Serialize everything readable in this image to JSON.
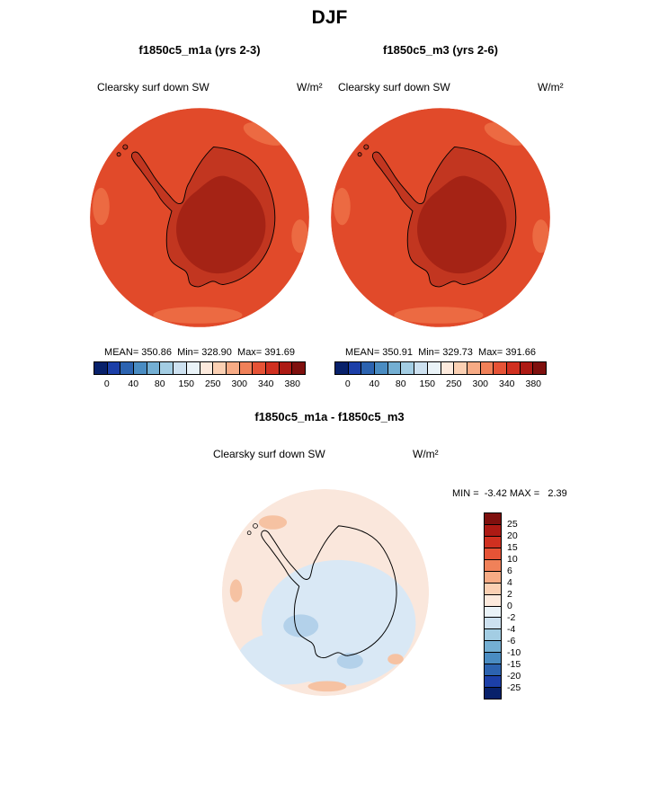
{
  "title": "DJF",
  "panels": [
    {
      "title": "f1850c5_m1a (yrs 2-3)",
      "field": "Clearsky surf down SW",
      "units": "W/m²",
      "stats": "MEAN= 350.86  Min= 328.90  Max= 391.69"
    },
    {
      "title": "f1850c5_m3 (yrs 2-6)",
      "field": "Clearsky surf down SW",
      "units": "W/m²",
      "stats": "MEAN= 350.91  Min= 329.73  Max= 391.66"
    }
  ],
  "scale": {
    "ticks": [
      "0",
      "40",
      "80",
      "150",
      "250",
      "300",
      "340",
      "380"
    ],
    "colors": [
      "#08216b",
      "#1c3fa8",
      "#2c63b0",
      "#4a8cc2",
      "#74afd3",
      "#a3cde3",
      "#cde1f0",
      "#eaf3f8",
      "#fdeadd",
      "#fbd0b3",
      "#f7ab85",
      "#f08159",
      "#e65336",
      "#d03020",
      "#ad1a14",
      "#7f100e"
    ]
  },
  "diff": {
    "title": "f1850c5_m1a - f1850c5_m3",
    "field": "Clearsky surf down SW",
    "units": "W/m²",
    "minmax": "MIN =  -3.42 MAX =   2.39",
    "labels": [
      "25",
      "20",
      "15",
      "10",
      "6",
      "4",
      "2",
      "0",
      "-2",
      "-4",
      "-6",
      "-10",
      "-15",
      "-20",
      "-25"
    ],
    "colors": [
      "#7f100e",
      "#ad1a14",
      "#d03020",
      "#e65336",
      "#f08159",
      "#f7ab85",
      "#fbd0b3",
      "#fdeadd",
      "#eaf3f8",
      "#cde1f0",
      "#a3cde3",
      "#74afd3",
      "#4a8cc2",
      "#2c63b0",
      "#1c3fa8",
      "#08216b"
    ]
  },
  "map_colors": {
    "ocean": "#E14A2A",
    "ocean_light": "#EC6A42",
    "continent": "#C23620",
    "interior": "#A52315",
    "diff_base": "#FAE7DC",
    "diff_blue_light": "#D9E8F5",
    "diff_blue_med": "#B3D1EA",
    "diff_salmon": "#F6C2A2"
  },
  "chart_data": [
    {
      "type": "heatmap",
      "subtype": "south_polar_stereographic_contour_map",
      "season": "DJF",
      "title": "f1850c5_m1a (yrs 2-3)",
      "variable": "Clearsky surf down SW",
      "units": "W/m²",
      "stats": {
        "mean": 350.86,
        "min": 328.9,
        "max": 391.69
      },
      "colorbar_ticks": [
        0,
        40,
        80,
        150,
        250,
        300,
        340,
        380
      ],
      "palette": "blue-to-red, 16 discrete cells",
      "legend_position": "bottom",
      "notes": "Southern-hemisphere polar map; ocean ~350 W/m² (orange-red), Antarctic coast band darker red, interior plateau darkest red (~380+)."
    },
    {
      "type": "heatmap",
      "subtype": "south_polar_stereographic_contour_map",
      "season": "DJF",
      "title": "f1850c5_m3 (yrs 2-6)",
      "variable": "Clearsky surf down SW",
      "units": "W/m²",
      "stats": {
        "mean": 350.91,
        "min": 329.73,
        "max": 391.66
      },
      "colorbar_ticks": [
        0,
        40,
        80,
        150,
        250,
        300,
        340,
        380
      ],
      "palette": "blue-to-red, 16 discrete cells",
      "legend_position": "bottom",
      "notes": "Nearly identical spatial pattern to first panel."
    },
    {
      "type": "heatmap",
      "subtype": "south_polar_stereographic_difference_map",
      "season": "DJF",
      "title": "f1850c5_m1a - f1850c5_m3",
      "variable": "Clearsky surf down SW",
      "units": "W/m²",
      "stats": {
        "min": -3.42,
        "max": 2.39
      },
      "colorbar_levels": [
        25,
        20,
        15,
        10,
        6,
        4,
        2,
        0,
        -2,
        -4,
        -6,
        -10,
        -15,
        -20,
        -25
      ],
      "legend_position": "right",
      "notes": "Differences near zero: pale pink (0 to +2) over most of map, pale blue (0 to -2) over East Antarctica and lower-left ocean, a few small ±2-4 patches."
    }
  ]
}
